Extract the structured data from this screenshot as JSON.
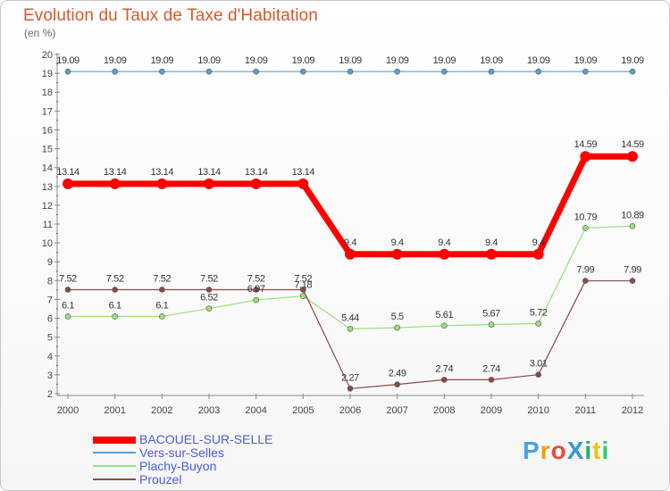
{
  "header": {
    "title": "Evolution du Taux de Taxe d'Habitation",
    "unit": "(en %)"
  },
  "brand": {
    "name": "ProXiti",
    "letters": [
      "P",
      "r",
      "o",
      "X",
      "i",
      "t",
      "i"
    ],
    "colors": [
      "#4aa3df",
      "#f39c12",
      "#e74c3c",
      "#3498db",
      "#27ae60",
      "#f1c40f",
      "#2ecc71"
    ]
  },
  "chart_data": {
    "type": "line",
    "title": "Evolution du Taux de Taxe d'Habitation",
    "ylabel": "(en %)",
    "xlabel": "",
    "x": [
      "2000",
      "2001",
      "2002",
      "2003",
      "2004",
      "2005",
      "2006",
      "2007",
      "2008",
      "2009",
      "2010",
      "2011",
      "2012"
    ],
    "ylim": [
      2,
      20
    ],
    "yticks": [
      2,
      3,
      4,
      5,
      6,
      7,
      8,
      9,
      10,
      11,
      12,
      13,
      14,
      15,
      16,
      17,
      18,
      19,
      20
    ],
    "grid": false,
    "legend_position": "bottom-left",
    "series": [
      {
        "name": "BACOUEL-SUR-SELLE",
        "color": "#ff0000",
        "values": [
          13.14,
          13.14,
          13.14,
          13.14,
          13.14,
          13.14,
          9.4,
          9.4,
          9.4,
          9.4,
          9.4,
          14.59,
          14.59
        ],
        "labels": [
          "13.14",
          "13.14",
          "13.14",
          "13.14",
          "13.14",
          "13.14",
          "9.4",
          "9.4",
          "9.4",
          "9.4",
          "9.4",
          "14.59",
          "14.59"
        ]
      },
      {
        "name": "Vers-sur-Selles",
        "color": "#5a9fd0",
        "values": [
          19.09,
          19.09,
          19.09,
          19.09,
          19.09,
          19.09,
          19.09,
          19.09,
          19.09,
          19.09,
          19.09,
          19.09,
          19.09
        ],
        "labels": [
          "19.09",
          "19.09",
          "19.09",
          "19.09",
          "19.09",
          "19.09",
          "19.09",
          "19.09",
          "19.09",
          "19.09",
          "19.09",
          "19.09",
          "19.09"
        ]
      },
      {
        "name": "Plachy-Buyon",
        "color": "#9ae07a",
        "values": [
          6.1,
          6.1,
          6.1,
          6.52,
          6.97,
          7.18,
          5.44,
          5.5,
          5.61,
          5.67,
          5.72,
          10.79,
          10.89
        ],
        "labels": [
          "6.1",
          "6.1",
          "6.1",
          "6.52",
          "6.97",
          "7.18",
          "5.44",
          "5.5",
          "5.61",
          "5.67",
          "5.72",
          "10.79",
          "10.89"
        ]
      },
      {
        "name": "Prouzel",
        "color": "#8b4a4a",
        "values": [
          7.52,
          7.52,
          7.52,
          7.52,
          7.52,
          7.52,
          2.27,
          2.49,
          2.74,
          2.74,
          3.01,
          7.99,
          7.99
        ],
        "labels": [
          "7.52",
          "7.52",
          "7.52",
          "7.52",
          "7.52",
          "7.52",
          "2.27",
          "2.49",
          "2.74",
          "2.74",
          "3.01",
          "7.99",
          "7.99"
        ]
      }
    ]
  }
}
